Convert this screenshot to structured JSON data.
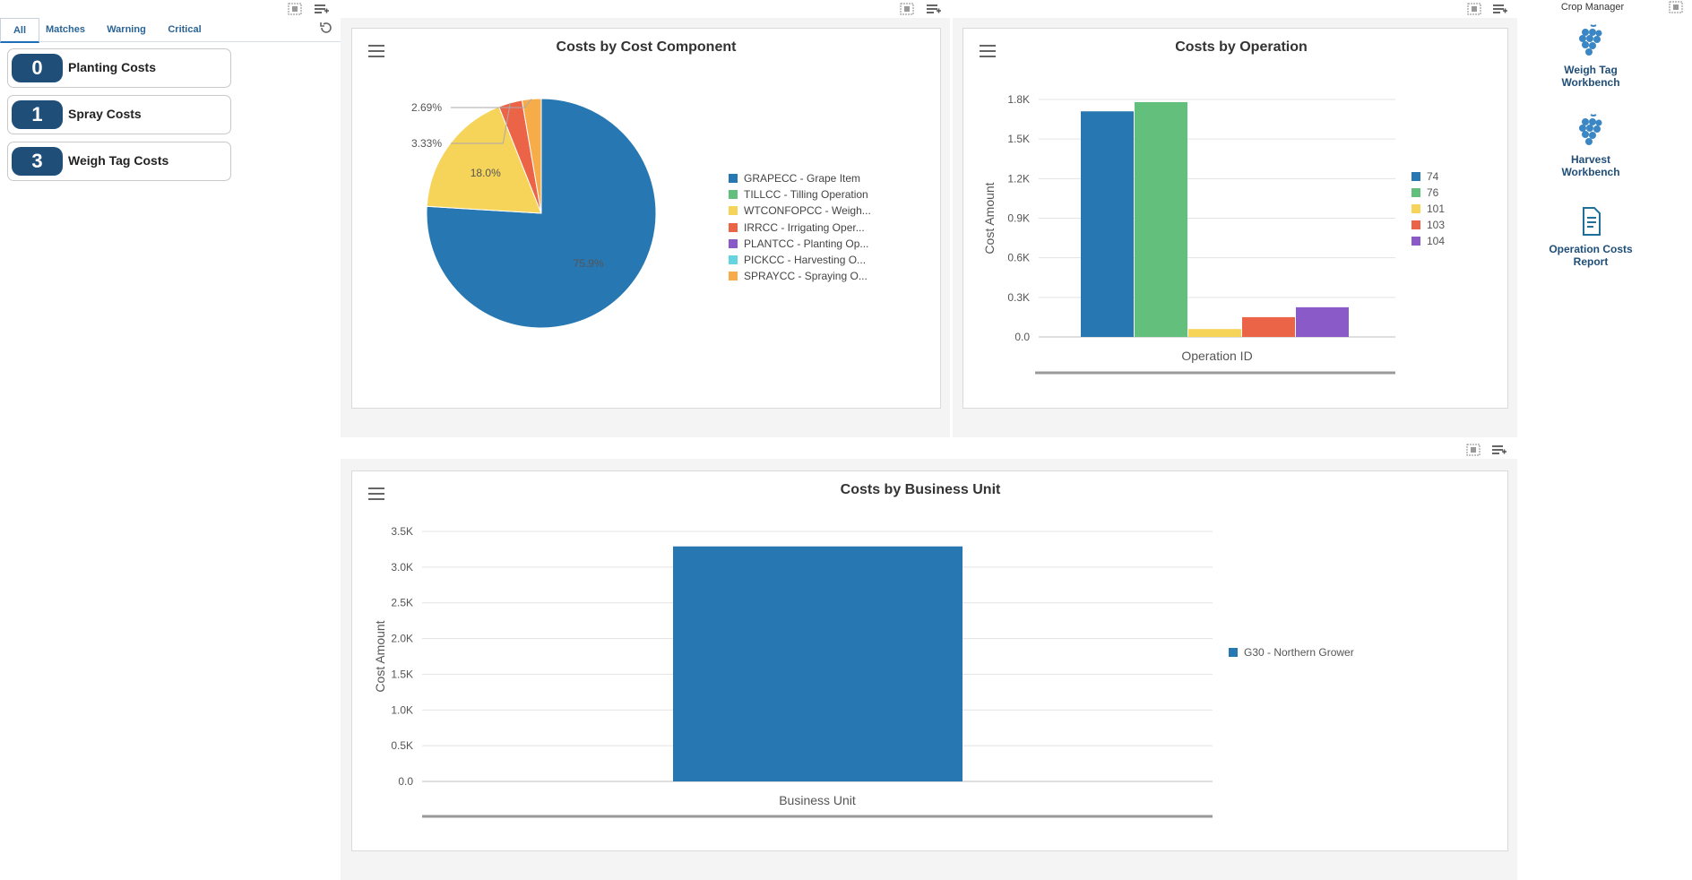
{
  "filters": {
    "tabs": [
      {
        "label": "All"
      },
      {
        "label": "Matches"
      },
      {
        "label": "Warning"
      },
      {
        "label": "Critical"
      }
    ],
    "refresh_icon": "refresh-icon"
  },
  "kpis": [
    {
      "count": "0",
      "label": "Planting Costs"
    },
    {
      "count": "1",
      "label": "Spray Costs"
    },
    {
      "count": "3",
      "label": "Weigh Tag Costs"
    }
  ],
  "pie": {
    "title": "Costs by Cost Component",
    "menu_icon": "hamburger-menu-icon"
  },
  "operation_chart": {
    "title": "Costs by Operation",
    "menu_icon": "hamburger-menu-icon"
  },
  "bu_chart": {
    "title": "Costs by Business Unit",
    "menu_icon": "hamburger-menu-icon"
  },
  "apps": {
    "header": "Crop Manager",
    "items": [
      {
        "label_1": "Weigh Tag",
        "label_2": "Workbench",
        "icon": "grapes-icon"
      },
      {
        "label_1": "Harvest",
        "label_2": "Workbench",
        "icon": "grapes-icon"
      },
      {
        "label_1": "Operation Costs",
        "label_2": "Report",
        "icon": "report-icon"
      }
    ]
  },
  "colors": {
    "blue": "#2778b2",
    "green": "#63c07c",
    "yellow": "#f6d45a",
    "red": "#ec6447",
    "purple": "#8a5ac8",
    "cyan": "#64d4e0",
    "orange": "#f6ac48",
    "badge": "#1f4e79"
  },
  "chart_data": [
    {
      "type": "pie",
      "title": "Costs by Cost Component",
      "slices": [
        {
          "name": "GRAPECC - Grape Item",
          "value": 75.9,
          "label": "75.9%",
          "color": "#2778b2"
        },
        {
          "name": "TILLCC - Tilling Operation",
          "value": 0,
          "label": "",
          "color": "#63c07c"
        },
        {
          "name": "WTCONFOPCC - Weigh...",
          "value": 18.0,
          "label": "18.0%",
          "color": "#f6d45a"
        },
        {
          "name": "IRRCC - Irrigating Oper...",
          "value": 3.33,
          "label": "3.33%",
          "color": "#ec6447"
        },
        {
          "name": "PLANTCC - Planting Op...",
          "value": 0,
          "label": "",
          "color": "#8a5ac8"
        },
        {
          "name": "PICKCC - Harvesting O...",
          "value": 0,
          "label": "",
          "color": "#64d4e0"
        },
        {
          "name": "SPRAYCC - Spraying O...",
          "value": 2.69,
          "label": "2.69%",
          "color": "#f6ac48"
        }
      ]
    },
    {
      "type": "bar",
      "title": "Costs by Operation",
      "xlabel": "Operation ID",
      "ylabel": "Cost Amount",
      "ylim": [
        0,
        1800
      ],
      "yticks": [
        "0.0",
        "0.3K",
        "0.6K",
        "0.9K",
        "1.2K",
        "1.5K",
        "1.8K"
      ],
      "ytick_values": [
        0,
        300,
        600,
        900,
        1200,
        1500,
        1800
      ],
      "series": [
        {
          "name": "74",
          "value": 1710,
          "color": "#2778b2"
        },
        {
          "name": "76",
          "value": 1780,
          "color": "#63c07c"
        },
        {
          "name": "101",
          "value": 60,
          "color": "#f6d45a"
        },
        {
          "name": "103",
          "value": 150,
          "color": "#ec6447"
        },
        {
          "name": "104",
          "value": 225,
          "color": "#8a5ac8"
        }
      ]
    },
    {
      "type": "bar",
      "title": "Costs by Business Unit",
      "xlabel": "Business Unit",
      "ylabel": "Cost Amount",
      "ylim": [
        0,
        3500
      ],
      "yticks": [
        "0.0",
        "0.5K",
        "1.0K",
        "1.5K",
        "2.0K",
        "2.5K",
        "3.0K",
        "3.5K"
      ],
      "ytick_values": [
        0,
        500,
        1000,
        1500,
        2000,
        2500,
        3000,
        3500
      ],
      "series": [
        {
          "name": "G30 - Northern Grower",
          "value": 3290,
          "color": "#2778b2"
        }
      ]
    }
  ]
}
